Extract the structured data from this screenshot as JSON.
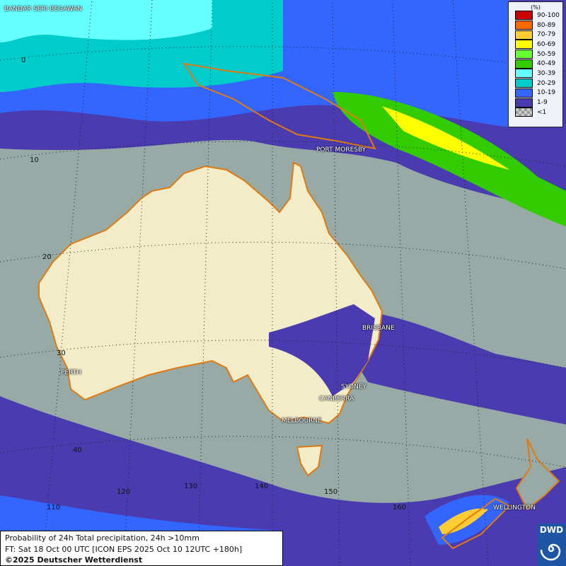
{
  "map": {
    "title": "Probability of 24h Total precipitation, 24h >10mm",
    "forecast_time": "FT: Sat 18 Oct 00 UTC [ICON EPS 2025 Oct 10 12UTC +180h]",
    "copyright": "©2025 Deutscher Wetterdienst",
    "logo_text": "DWD",
    "cities": [
      "BANDAR SERI BEGAWAN",
      "PORT MORESBY",
      "BRISBANE",
      "PERTH",
      "SYDNEY",
      "CANBERRA",
      "MELBOURNE",
      "WELLINGTON"
    ],
    "lat_labels": [
      "0",
      "10",
      "20",
      "30",
      "40"
    ],
    "lon_labels": [
      "110",
      "120",
      "130",
      "140",
      "150",
      "160"
    ],
    "colors": {
      "ocean": "#97aaa6",
      "land": "#f3ecc8",
      "coast": "#e07a10"
    }
  },
  "legend": {
    "unit": "(%)",
    "items": [
      {
        "label": "90-100",
        "color": "#cc0000"
      },
      {
        "label": "80-89",
        "color": "#ff6600"
      },
      {
        "label": "70-79",
        "color": "#ffcc33"
      },
      {
        "label": "60-69",
        "color": "#ffff00"
      },
      {
        "label": "50-59",
        "color": "#66ff33"
      },
      {
        "label": "40-49",
        "color": "#33cc00"
      },
      {
        "label": "30-39",
        "color": "#66ffff"
      },
      {
        "label": "20-29",
        "color": "#00cccc"
      },
      {
        "label": "10-19",
        "color": "#3366ff"
      },
      {
        "label": "1-9",
        "color": "#4a3cb0"
      },
      {
        "label": "<1",
        "color": "#bbbbbb"
      }
    ]
  }
}
